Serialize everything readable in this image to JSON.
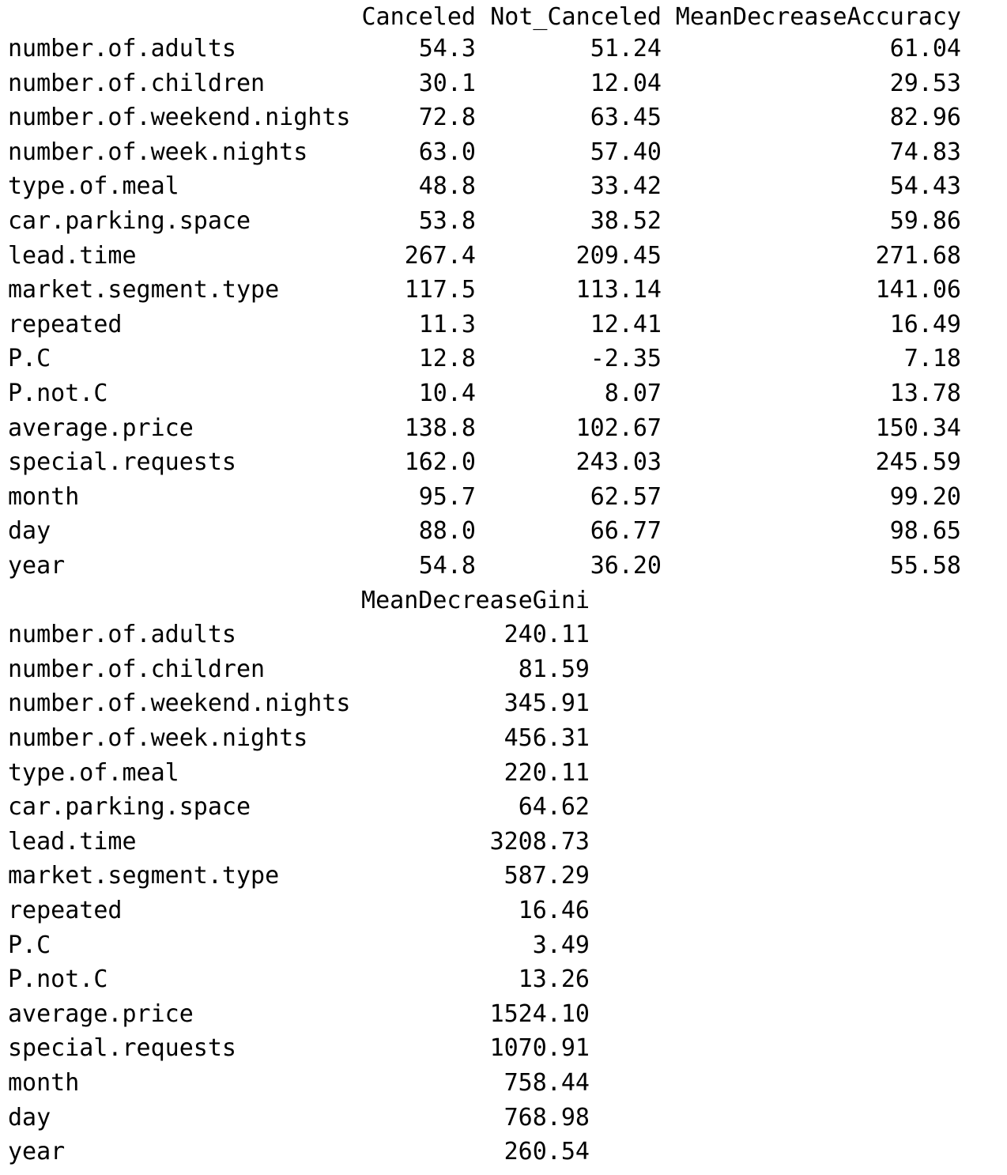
{
  "table1": {
    "headers": [
      "Canceled",
      "Not_Canceled",
      "MeanDecreaseAccuracy"
    ],
    "rows": [
      {
        "name": "number.of.adults",
        "values": [
          "54.3",
          "51.24",
          "61.04"
        ]
      },
      {
        "name": "number.of.children",
        "values": [
          "30.1",
          "12.04",
          "29.53"
        ]
      },
      {
        "name": "number.of.weekend.nights",
        "values": [
          "72.8",
          "63.45",
          "82.96"
        ]
      },
      {
        "name": "number.of.week.nights",
        "values": [
          "63.0",
          "57.40",
          "74.83"
        ]
      },
      {
        "name": "type.of.meal",
        "values": [
          "48.8",
          "33.42",
          "54.43"
        ]
      },
      {
        "name": "car.parking.space",
        "values": [
          "53.8",
          "38.52",
          "59.86"
        ]
      },
      {
        "name": "lead.time",
        "values": [
          "267.4",
          "209.45",
          "271.68"
        ]
      },
      {
        "name": "market.segment.type",
        "values": [
          "117.5",
          "113.14",
          "141.06"
        ]
      },
      {
        "name": "repeated",
        "values": [
          "11.3",
          "12.41",
          "16.49"
        ]
      },
      {
        "name": "P.C",
        "values": [
          "12.8",
          "-2.35",
          "7.18"
        ]
      },
      {
        "name": "P.not.C",
        "values": [
          "10.4",
          "8.07",
          "13.78"
        ]
      },
      {
        "name": "average.price",
        "values": [
          "138.8",
          "102.67",
          "150.34"
        ]
      },
      {
        "name": "special.requests",
        "values": [
          "162.0",
          "243.03",
          "245.59"
        ]
      },
      {
        "name": "month",
        "values": [
          "95.7",
          "62.57",
          "99.20"
        ]
      },
      {
        "name": "day",
        "values": [
          "88.0",
          "66.77",
          "98.65"
        ]
      },
      {
        "name": "year",
        "values": [
          "54.8",
          "36.20",
          "55.58"
        ]
      }
    ]
  },
  "table2": {
    "header": "MeanDecreaseGini",
    "rows": [
      {
        "name": "number.of.adults",
        "value": "240.11"
      },
      {
        "name": "number.of.children",
        "value": "81.59"
      },
      {
        "name": "number.of.weekend.nights",
        "value": "345.91"
      },
      {
        "name": "number.of.week.nights",
        "value": "456.31"
      },
      {
        "name": "type.of.meal",
        "value": "220.11"
      },
      {
        "name": "car.parking.space",
        "value": "64.62"
      },
      {
        "name": "lead.time",
        "value": "3208.73"
      },
      {
        "name": "market.segment.type",
        "value": "587.29"
      },
      {
        "name": "repeated",
        "value": "16.46"
      },
      {
        "name": "P.C",
        "value": "3.49"
      },
      {
        "name": "P.not.C",
        "value": "13.26"
      },
      {
        "name": "average.price",
        "value": "1524.10"
      },
      {
        "name": "special.requests",
        "value": "1070.91"
      },
      {
        "name": "month",
        "value": "758.44"
      },
      {
        "name": "day",
        "value": "768.98"
      },
      {
        "name": "year",
        "value": "260.54"
      }
    ]
  },
  "colors": {
    "text": "#000000",
    "background": "#ffffff",
    "next_prompt_partial": "#2a5db0"
  }
}
